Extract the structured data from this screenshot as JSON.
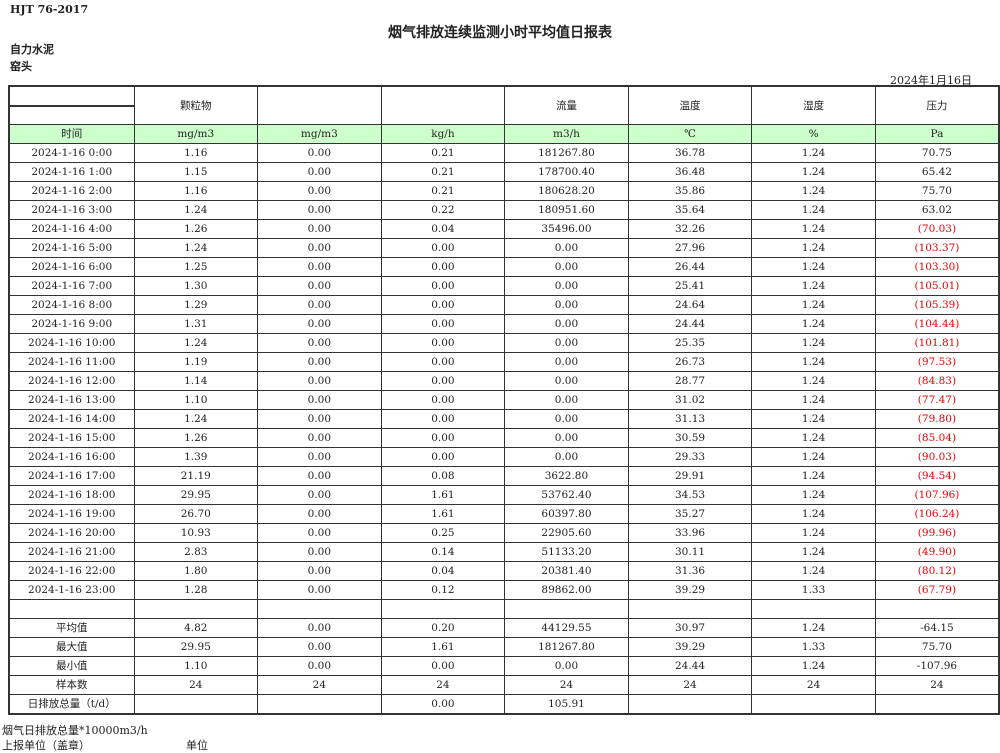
{
  "standard": "HJT  76-2017",
  "title": "烟气排放连续监测小时平均值日报表",
  "company": "自力水泥",
  "unit": "窑头",
  "date": "2024年1月16日",
  "header": {
    "names": [
      "",
      "颗粒物",
      "",
      "",
      "流量",
      "温度",
      "湿度",
      "压力"
    ],
    "units": [
      "时间",
      "mg/m3",
      "mg/m3",
      "kg/h",
      "m3/h",
      "℃",
      "%",
      "Pa"
    ]
  },
  "rows": [
    [
      "2024-1-16 0:00",
      "1.16",
      "0.00",
      "0.21",
      "181267.80",
      "36.78",
      "1.24",
      "70.75",
      false
    ],
    [
      "2024-1-16 1:00",
      "1.15",
      "0.00",
      "0.21",
      "178700.40",
      "36.48",
      "1.24",
      "65.42",
      false
    ],
    [
      "2024-1-16 2:00",
      "1.16",
      "0.00",
      "0.21",
      "180628.20",
      "35.86",
      "1.24",
      "75.70",
      false
    ],
    [
      "2024-1-16 3:00",
      "1.24",
      "0.00",
      "0.22",
      "180951.60",
      "35.64",
      "1.24",
      "63.02",
      false
    ],
    [
      "2024-1-16 4:00",
      "1.26",
      "0.00",
      "0.04",
      "35496.00",
      "32.26",
      "1.24",
      "(70.03)",
      true
    ],
    [
      "2024-1-16 5:00",
      "1.24",
      "0.00",
      "0.00",
      "0.00",
      "27.96",
      "1.24",
      "(103.37)",
      true
    ],
    [
      "2024-1-16 6:00",
      "1.25",
      "0.00",
      "0.00",
      "0.00",
      "26.44",
      "1.24",
      "(103.30)",
      true
    ],
    [
      "2024-1-16 7:00",
      "1.30",
      "0.00",
      "0.00",
      "0.00",
      "25.41",
      "1.24",
      "(105.01)",
      true
    ],
    [
      "2024-1-16 8:00",
      "1.29",
      "0.00",
      "0.00",
      "0.00",
      "24.64",
      "1.24",
      "(105.39)",
      true
    ],
    [
      "2024-1-16 9:00",
      "1.31",
      "0.00",
      "0.00",
      "0.00",
      "24.44",
      "1.24",
      "(104.44)",
      true
    ],
    [
      "2024-1-16 10:00",
      "1.24",
      "0.00",
      "0.00",
      "0.00",
      "25.35",
      "1.24",
      "(101.81)",
      true
    ],
    [
      "2024-1-16 11:00",
      "1.19",
      "0.00",
      "0.00",
      "0.00",
      "26.73",
      "1.24",
      "(97.53)",
      true
    ],
    [
      "2024-1-16 12:00",
      "1.14",
      "0.00",
      "0.00",
      "0.00",
      "28.77",
      "1.24",
      "(84.83)",
      true
    ],
    [
      "2024-1-16 13:00",
      "1.10",
      "0.00",
      "0.00",
      "0.00",
      "31.02",
      "1.24",
      "(77.47)",
      true
    ],
    [
      "2024-1-16 14:00",
      "1.24",
      "0.00",
      "0.00",
      "0.00",
      "31.13",
      "1.24",
      "(79.80)",
      true
    ],
    [
      "2024-1-16 15:00",
      "1.26",
      "0.00",
      "0.00",
      "0.00",
      "30.59",
      "1.24",
      "(85.04)",
      true
    ],
    [
      "2024-1-16 16:00",
      "1.39",
      "0.00",
      "0.00",
      "0.00",
      "29.33",
      "1.24",
      "(90.03)",
      true
    ],
    [
      "2024-1-16 17:00",
      "21.19",
      "0.00",
      "0.08",
      "3622.80",
      "29.91",
      "1.24",
      "(94.54)",
      true
    ],
    [
      "2024-1-16 18:00",
      "29.95",
      "0.00",
      "1.61",
      "53762.40",
      "34.53",
      "1.24",
      "(107.96)",
      true
    ],
    [
      "2024-1-16 19:00",
      "26.70",
      "0.00",
      "1.61",
      "60397.80",
      "35.27",
      "1.24",
      "(106.24)",
      true
    ],
    [
      "2024-1-16 20:00",
      "10.93",
      "0.00",
      "0.25",
      "22905.60",
      "33.96",
      "1.24",
      "(99.96)",
      true
    ],
    [
      "2024-1-16 21:00",
      "2.83",
      "0.00",
      "0.14",
      "51133.20",
      "30.11",
      "1.24",
      "(49.90)",
      true
    ],
    [
      "2024-1-16 22:00",
      "1.80",
      "0.00",
      "0.04",
      "20381.40",
      "31.36",
      "1.24",
      "(80.12)",
      true
    ],
    [
      "2024-1-16 23:00",
      "1.28",
      "0.00",
      "0.12",
      "89862.00",
      "39.29",
      "1.33",
      "(67.79)",
      true
    ]
  ],
  "summary": [
    [
      "平均值",
      "4.82",
      "0.00",
      "0.20",
      "44129.55",
      "30.97",
      "1.24",
      "-64.15"
    ],
    [
      "最大值",
      "29.95",
      "0.00",
      "1.61",
      "181267.80",
      "39.29",
      "1.33",
      "75.70"
    ],
    [
      "最小值",
      "1.10",
      "0.00",
      "0.00",
      "0.00",
      "24.44",
      "1.24",
      "-107.96"
    ],
    [
      "样本数",
      "24",
      "24",
      "24",
      "24",
      "24",
      "24",
      "24"
    ],
    [
      "日排放总量（t/d）",
      "",
      "",
      "0.00",
      "105.91",
      "",
      "",
      ""
    ]
  ],
  "footer": {
    "flow_note": "烟气日排放总量*10000m3/h",
    "reporter": "上报单位（盖章）",
    "unit_label": "单位"
  }
}
